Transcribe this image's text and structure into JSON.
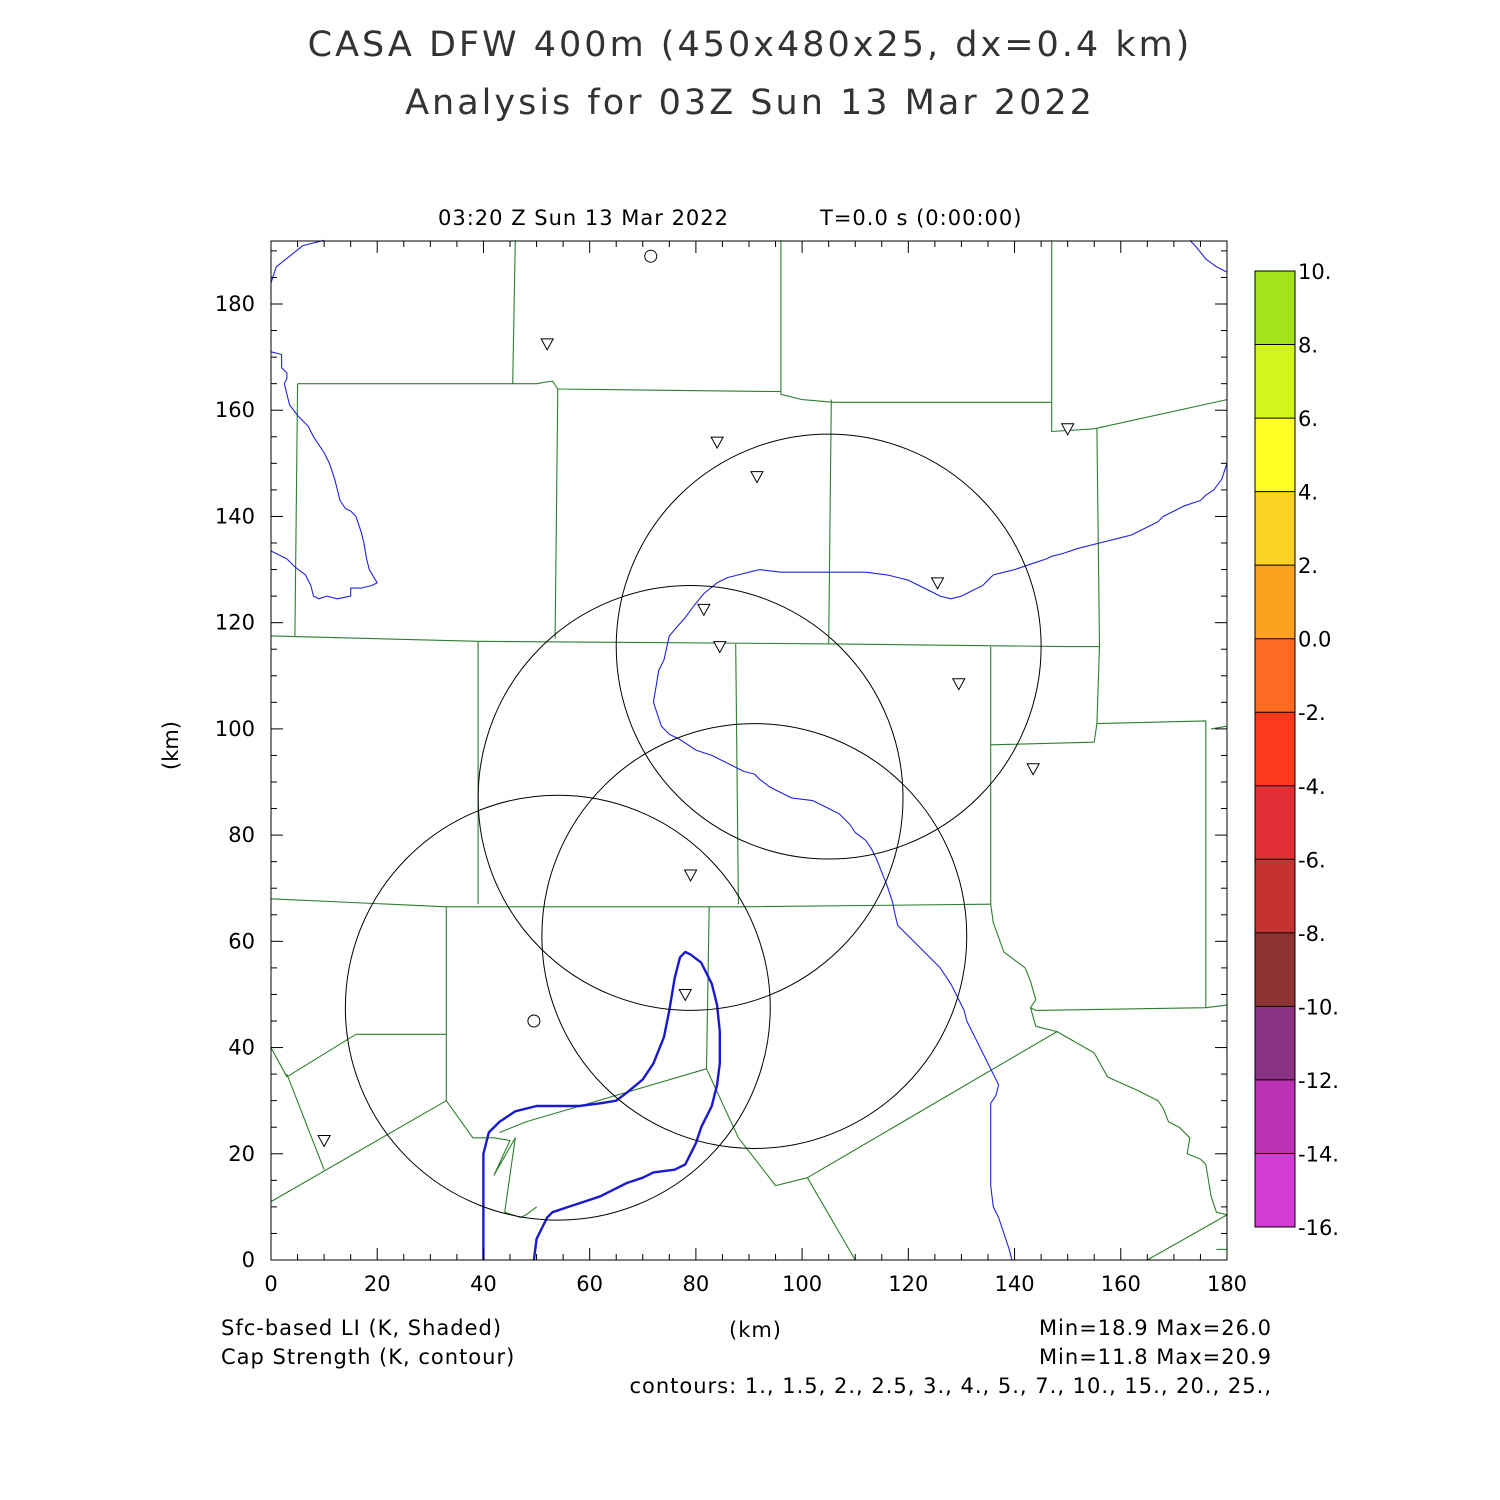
{
  "header": {
    "title": "CASA DFW 400m (450x480x25, dx=0.4 km)",
    "subtitle": "Analysis for 03Z Sun 13 Mar 2022"
  },
  "plot": {
    "time_label": "03:20 Z Sun 13 Mar 2022",
    "t_label": "T=0.0 s (0:00:00)"
  },
  "chart_data": {
    "type": "map",
    "xlabel": "(km)",
    "ylabel": "(km)",
    "xlim": [
      0,
      180
    ],
    "ylim": [
      0,
      192
    ],
    "x_ticks": [
      "0",
      "20",
      "40",
      "60",
      "80",
      "100",
      "120",
      "140",
      "160",
      "180"
    ],
    "y_ticks": [
      "0",
      "20",
      "40",
      "60",
      "80",
      "100",
      "120",
      "140",
      "160",
      "180"
    ],
    "colorbar": {
      "labels": [
        "10.",
        "8.",
        "6.",
        "4.",
        "2.",
        "0.0",
        "-2.",
        "-4.",
        "-6.",
        "-8.",
        "-10.",
        "-12.",
        "-14.",
        "-16."
      ],
      "colors": [
        "#a3e31e",
        "#d3f51d",
        "#ffff25",
        "#fcd322",
        "#fca21f",
        "#fd6a21",
        "#fb3a1c",
        "#e02e35",
        "#c43232",
        "#8c3434",
        "#8c3282",
        "#bb32b4",
        "#d43bd2"
      ]
    },
    "radar_rings": [
      {
        "center_x": 105,
        "center_y": 115.5,
        "radius": 40
      },
      {
        "center_x": 79,
        "center_y": 87,
        "radius": 40
      },
      {
        "center_x": 91,
        "center_y": 61,
        "radius": 40
      },
      {
        "center_x": 54,
        "center_y": 47.5,
        "radius": 40
      }
    ],
    "triangle_markers": [
      {
        "x": 52,
        "y": 172.5
      },
      {
        "x": 84,
        "y": 154
      },
      {
        "x": 91.5,
        "y": 147.5
      },
      {
        "x": 150,
        "y": 156.5
      },
      {
        "x": 125.5,
        "y": 127.5
      },
      {
        "x": 81.5,
        "y": 122.5
      },
      {
        "x": 84.5,
        "y": 115.5
      },
      {
        "x": 129.5,
        "y": 108.5
      },
      {
        "x": 143.5,
        "y": 92.5
      },
      {
        "x": 79,
        "y": 72.5
      },
      {
        "x": 78,
        "y": 50
      },
      {
        "x": 10,
        "y": 22.5
      }
    ],
    "circle_markers": [
      {
        "x": 71.5,
        "y": 189
      },
      {
        "x": 49.5,
        "y": 45
      }
    ],
    "county_lines": [
      [
        [
          5,
          165
        ],
        [
          50,
          165
        ],
        [
          53,
          165.5
        ],
        [
          54,
          164
        ],
        [
          96,
          163.5
        ],
        [
          96,
          163
        ],
        [
          100,
          162
        ],
        [
          106,
          161.5
        ],
        [
          147,
          161.5
        ],
        [
          147,
          156
        ],
        [
          155,
          156.5
        ],
        [
          180,
          162
        ]
      ],
      [
        [
          0,
          117.5
        ],
        [
          39,
          116.5
        ],
        [
          106,
          116
        ],
        [
          150,
          115.5
        ],
        [
          156,
          115.5
        ]
      ],
      [
        [
          0,
          68
        ],
        [
          33,
          66.5
        ],
        [
          66,
          66.5
        ],
        [
          82,
          66.5
        ],
        [
          88,
          66.5
        ],
        [
          135.5,
          67
        ]
      ],
      [
        [
          0,
          40
        ],
        [
          3,
          34.5
        ],
        [
          16,
          42.5
        ],
        [
          33,
          42.5
        ]
      ],
      [
        [
          0,
          11
        ],
        [
          33,
          30
        ],
        [
          38,
          23
        ],
        [
          42,
          23
        ],
        [
          45,
          22.5
        ],
        [
          42,
          16
        ],
        [
          46,
          23
        ],
        [
          44,
          9
        ],
        [
          47,
          8
        ],
        [
          48,
          8.5
        ],
        [
          50,
          10
        ]
      ],
      [
        [
          43,
          24
        ],
        [
          48,
          26
        ],
        [
          82,
          36
        ]
      ],
      [
        [
          82,
          36
        ],
        [
          88,
          23
        ],
        [
          95,
          14
        ],
        [
          101,
          15.5
        ],
        [
          148,
          43
        ]
      ],
      [
        [
          101,
          15.5
        ],
        [
          110,
          0
        ]
      ],
      [
        [
          3,
          35
        ],
        [
          10,
          17
        ]
      ],
      [
        [
          33,
          66.5
        ],
        [
          33,
          30
        ]
      ],
      [
        [
          39,
          116.5
        ],
        [
          39,
          67
        ]
      ],
      [
        [
          87.5,
          116
        ],
        [
          88,
          67
        ]
      ],
      [
        [
          82.5,
          66.5
        ],
        [
          82,
          36
        ]
      ],
      [
        [
          54,
          164
        ],
        [
          53.5,
          117
        ]
      ],
      [
        [
          105.5,
          162
        ],
        [
          105,
          116
        ]
      ],
      [
        [
          5,
          165
        ],
        [
          4.5,
          117.5
        ]
      ],
      [
        [
          46,
          192
        ],
        [
          45.5,
          165
        ]
      ],
      [
        [
          96,
          192
        ],
        [
          96,
          163.5
        ]
      ],
      [
        [
          147,
          192
        ],
        [
          147,
          161.5
        ]
      ],
      [
        [
          155.5,
          156.5
        ],
        [
          156,
          115.5
        ],
        [
          155.5,
          101
        ],
        [
          155,
          97.5
        ],
        [
          135.5,
          97
        ]
      ],
      [
        [
          135.5,
          115.5
        ],
        [
          135.5,
          67
        ],
        [
          136,
          63.5
        ],
        [
          138,
          58
        ],
        [
          142,
          55
        ],
        [
          143,
          52.5
        ],
        [
          144,
          49
        ],
        [
          143,
          47.5
        ],
        [
          144,
          47
        ],
        [
          176,
          47.5
        ],
        [
          180,
          48
        ]
      ],
      [
        [
          155.5,
          101
        ],
        [
          176,
          101.5
        ],
        [
          176,
          47.5
        ]
      ],
      [
        [
          177,
          100
        ],
        [
          180,
          100.5
        ]
      ],
      [
        [
          143,
          47.5
        ],
        [
          144,
          44
        ],
        [
          148,
          43
        ],
        [
          155,
          39
        ],
        [
          157.5,
          34.5
        ],
        [
          158.5,
          34
        ],
        [
          163,
          32
        ],
        [
          167,
          30
        ],
        [
          168,
          28.5
        ],
        [
          169,
          26
        ],
        [
          171,
          25
        ],
        [
          173,
          23
        ],
        [
          172.5,
          20
        ],
        [
          175,
          19
        ],
        [
          176,
          18
        ],
        [
          177,
          12
        ],
        [
          178,
          9
        ],
        [
          180,
          8.5
        ]
      ],
      [
        [
          165,
          0
        ],
        [
          180,
          8.5
        ]
      ],
      [
        [
          180,
          2
        ],
        [
          178,
          2
        ]
      ]
    ],
    "water_lines_thin": [
      [
        [
          0,
          184
        ],
        [
          1,
          187
        ],
        [
          6,
          191
        ],
        [
          10,
          192
        ]
      ],
      [
        [
          0,
          171
        ],
        [
          2,
          170.5
        ],
        [
          2,
          168
        ],
        [
          3,
          167
        ],
        [
          3,
          166
        ],
        [
          2.5,
          165
        ],
        [
          3,
          163
        ],
        [
          3.5,
          161
        ],
        [
          5,
          159
        ],
        [
          7,
          157
        ],
        [
          8,
          155
        ],
        [
          9,
          153.5
        ],
        [
          10,
          152
        ],
        [
          11,
          150
        ],
        [
          11.5,
          148.5
        ],
        [
          12,
          147
        ],
        [
          12.5,
          145
        ],
        [
          13,
          143
        ],
        [
          14,
          141.5
        ],
        [
          15,
          141
        ],
        [
          16,
          140
        ],
        [
          17,
          137
        ],
        [
          17.5,
          135
        ],
        [
          18,
          132
        ],
        [
          18.5,
          130
        ],
        [
          20,
          127.5
        ],
        [
          19,
          127
        ],
        [
          17,
          126.5
        ],
        [
          15,
          126.5
        ],
        [
          15,
          125
        ],
        [
          12.5,
          124.5
        ],
        [
          10.5,
          125
        ],
        [
          9,
          124.5
        ],
        [
          8,
          125
        ],
        [
          7.5,
          127
        ],
        [
          6.5,
          129
        ],
        [
          4.5,
          130.5
        ],
        [
          3,
          132
        ],
        [
          0,
          133.5
        ]
      ],
      [
        [
          180,
          150
        ],
        [
          179,
          147
        ],
        [
          177.5,
          145
        ],
        [
          176,
          144
        ],
        [
          175,
          143
        ],
        [
          172,
          142
        ],
        [
          170,
          141
        ],
        [
          168,
          140
        ],
        [
          167,
          139
        ],
        [
          164,
          137.5
        ],
        [
          162,
          136.5
        ],
        [
          160,
          136
        ],
        [
          156,
          135
        ],
        [
          152,
          134
        ],
        [
          149,
          133
        ],
        [
          147,
          132.5
        ],
        [
          146,
          132
        ],
        [
          143,
          131
        ],
        [
          140,
          130
        ],
        [
          138,
          129.5
        ],
        [
          136,
          129
        ],
        [
          135,
          128
        ],
        [
          134,
          127
        ],
        [
          132,
          126
        ],
        [
          130,
          125
        ],
        [
          128,
          124.5
        ],
        [
          126,
          125
        ],
        [
          124,
          126
        ],
        [
          122,
          127
        ],
        [
          120,
          128
        ],
        [
          118,
          128.5
        ],
        [
          116,
          129
        ],
        [
          112,
          129.5
        ],
        [
          108,
          129.5
        ],
        [
          104,
          129.5
        ],
        [
          100,
          129.5
        ],
        [
          96,
          129.5
        ],
        [
          92,
          130
        ],
        [
          90,
          129.5
        ],
        [
          88,
          129
        ],
        [
          86,
          128.5
        ],
        [
          84,
          127.5
        ],
        [
          81.5,
          125.5
        ],
        [
          79.5,
          123
        ],
        [
          78,
          121
        ],
        [
          75,
          117.5
        ],
        [
          74,
          113
        ],
        [
          73,
          111
        ],
        [
          72.5,
          108
        ],
        [
          72,
          105
        ],
        [
          73.5,
          100.5
        ],
        [
          75,
          99
        ],
        [
          77,
          98
        ],
        [
          80,
          96
        ],
        [
          83,
          95
        ],
        [
          86,
          93.5
        ],
        [
          89,
          92
        ],
        [
          91,
          91.5
        ],
        [
          92,
          90.5
        ],
        [
          94,
          89
        ],
        [
          96,
          88
        ],
        [
          98,
          87
        ],
        [
          102,
          86.5
        ],
        [
          104,
          85.5
        ],
        [
          107,
          84
        ],
        [
          109,
          82
        ],
        [
          110,
          80.5
        ],
        [
          112,
          79
        ],
        [
          113,
          77.5
        ],
        [
          114,
          75.5
        ],
        [
          115,
          73
        ],
        [
          116,
          70.5
        ],
        [
          117,
          67.5
        ],
        [
          117.5,
          65
        ],
        [
          118,
          63
        ],
        [
          120,
          61
        ],
        [
          122,
          59
        ],
        [
          124,
          57
        ],
        [
          126,
          55
        ],
        [
          128,
          52
        ],
        [
          129.5,
          49
        ],
        [
          130.5,
          47
        ],
        [
          131,
          45
        ],
        [
          132,
          43
        ],
        [
          133,
          41
        ],
        [
          134,
          39
        ],
        [
          135,
          37
        ],
        [
          136,
          35
        ],
        [
          137,
          33
        ],
        [
          136.5,
          31
        ],
        [
          135.5,
          29.5
        ],
        [
          135.5,
          26
        ],
        [
          135.5,
          22
        ],
        [
          135.5,
          18
        ],
        [
          135.5,
          14
        ],
        [
          136,
          10
        ],
        [
          137,
          8
        ],
        [
          138,
          5
        ],
        [
          139,
          2
        ],
        [
          139.5,
          0
        ]
      ],
      [
        [
          180,
          186
        ],
        [
          178,
          187
        ],
        [
          176,
          188.5
        ],
        [
          174,
          191
        ],
        [
          173,
          192
        ]
      ]
    ],
    "contours_thick": [
      [
        [
          40,
          0
        ],
        [
          40,
          20
        ],
        [
          41,
          24
        ],
        [
          43,
          26
        ],
        [
          46,
          28
        ],
        [
          50,
          29
        ],
        [
          58,
          29
        ],
        [
          62,
          29.5
        ],
        [
          65,
          30
        ],
        [
          67,
          31.5
        ],
        [
          70,
          34
        ],
        [
          72,
          37
        ],
        [
          74,
          42
        ],
        [
          75,
          47
        ],
        [
          76,
          53
        ],
        [
          77,
          57
        ],
        [
          78,
          58
        ],
        [
          79,
          57.5
        ],
        [
          81,
          56
        ],
        [
          83,
          52
        ],
        [
          84,
          48
        ],
        [
          84.5,
          43
        ],
        [
          84.5,
          37
        ],
        [
          84,
          33
        ],
        [
          83,
          29
        ],
        [
          81,
          25
        ],
        [
          80,
          22
        ],
        [
          79,
          20
        ],
        [
          78,
          18
        ],
        [
          76,
          17
        ],
        [
          72,
          16.5
        ],
        [
          70,
          15.5
        ],
        [
          67,
          14.5
        ],
        [
          65,
          13.5
        ],
        [
          62,
          12
        ],
        [
          59,
          11
        ],
        [
          56,
          10
        ],
        [
          53,
          9
        ],
        [
          52,
          8
        ],
        [
          51,
          6
        ],
        [
          50,
          4
        ],
        [
          49.5,
          0
        ]
      ]
    ]
  },
  "footer": {
    "line1_left": "Sfc-based LI (K, Shaded)",
    "line2_left": "Cap Strength (K, contour)",
    "xlabel": "(km)",
    "line1_right": "Min=18.9 Max=26.0",
    "line2_right": "Min=11.8 Max=20.9",
    "contours": "contours: 1., 1.5, 2., 2.5, 3., 4., 5., 7., 10., 15., 20., 25.,"
  }
}
